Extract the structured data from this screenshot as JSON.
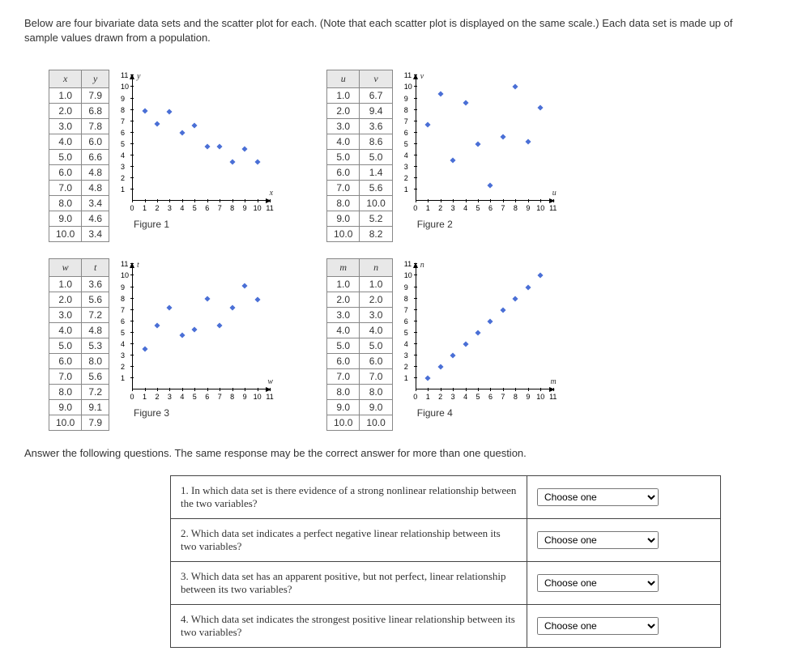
{
  "intro": "Below are four bivariate data sets and the scatter plot for each. (Note that each scatter plot is displayed on the same scale.) Each data set is made up of sample values drawn from a population.",
  "mid_text": "Answer the following questions. The same response may be the correct answer for more than one question.",
  "chart_style": {
    "xlim": [
      0,
      11
    ],
    "ylim": [
      0,
      11
    ],
    "x_ticks": [
      0,
      1,
      2,
      3,
      4,
      5,
      6,
      7,
      8,
      9,
      10,
      11
    ],
    "y_ticks": [
      1,
      2,
      3,
      4,
      5,
      6,
      7,
      8,
      9,
      10,
      11
    ],
    "point_color": "#4a6fd6",
    "axis_color": "#000000",
    "tick_fontsize": 9
  },
  "datasets": [
    {
      "xvar": "x",
      "yvar": "y",
      "x": [
        1.0,
        2.0,
        3.0,
        4.0,
        5.0,
        6.0,
        7.0,
        8.0,
        9.0,
        10.0
      ],
      "y": [
        7.9,
        6.8,
        7.8,
        6.0,
        6.6,
        4.8,
        4.8,
        3.4,
        4.6,
        3.4
      ],
      "caption": "Figure 1",
      "y_axis_label": "y",
      "x_axis_label": "x"
    },
    {
      "xvar": "u",
      "yvar": "v",
      "x": [
        1.0,
        2.0,
        3.0,
        4.0,
        5.0,
        6.0,
        7.0,
        8.0,
        9.0,
        10.0
      ],
      "y": [
        6.7,
        9.4,
        3.6,
        8.6,
        5.0,
        1.4,
        5.6,
        10.0,
        5.2,
        8.2
      ],
      "caption": "Figure 2",
      "y_axis_label": "v",
      "x_axis_label": "u"
    },
    {
      "xvar": "w",
      "yvar": "t",
      "x": [
        1.0,
        2.0,
        3.0,
        4.0,
        5.0,
        6.0,
        7.0,
        8.0,
        9.0,
        10.0
      ],
      "y": [
        3.6,
        5.6,
        7.2,
        4.8,
        5.3,
        8.0,
        5.6,
        7.2,
        9.1,
        7.9
      ],
      "caption": "Figure 3",
      "y_axis_label": "t",
      "x_axis_label": "w"
    },
    {
      "xvar": "m",
      "yvar": "n",
      "x": [
        1.0,
        2.0,
        3.0,
        4.0,
        5.0,
        6.0,
        7.0,
        8.0,
        9.0,
        10.0
      ],
      "y": [
        1.0,
        2.0,
        3.0,
        4.0,
        5.0,
        6.0,
        7.0,
        8.0,
        9.0,
        10.0
      ],
      "caption": "Figure 4",
      "y_axis_label": "n",
      "x_axis_label": "m"
    }
  ],
  "questions": [
    {
      "text": "1. In which data set is there evidence of a strong nonlinear relationship between the two variables?",
      "placeholder": "Choose one"
    },
    {
      "text": "2. Which data set indicates a perfect negative linear relationship between its two variables?",
      "placeholder": "Choose one"
    },
    {
      "text": "3. Which data set has an apparent positive, but not perfect, linear relationship between its two variables?",
      "placeholder": "Choose one"
    },
    {
      "text": "4. Which data set indicates the strongest positive linear relationship between its two variables?",
      "placeholder": "Choose one"
    }
  ]
}
